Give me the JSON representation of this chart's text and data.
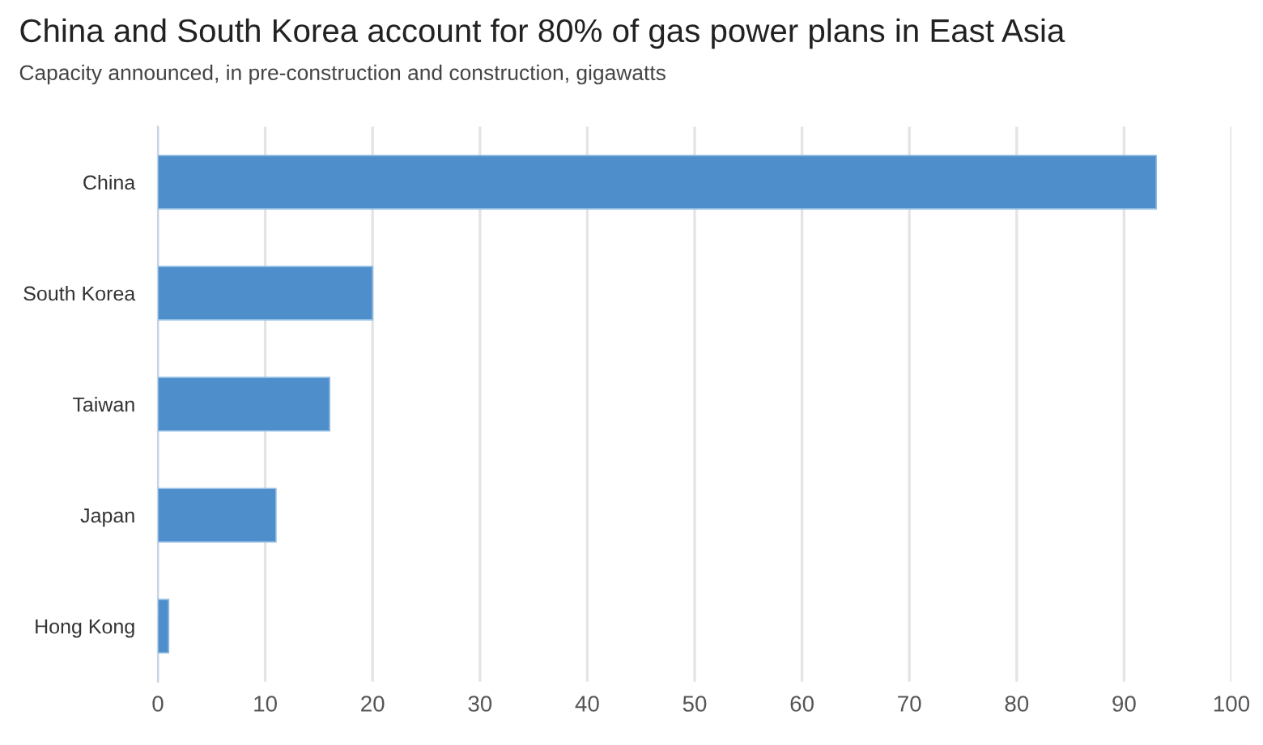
{
  "chart_data": {
    "type": "bar",
    "orientation": "horizontal",
    "title": "China and South Korea account for 80% of gas power plans in East Asia",
    "subtitle": "Capacity announced, in pre-construction and construction, gigawatts",
    "categories": [
      "China",
      "South Korea",
      "Taiwan",
      "Japan",
      "Hong Kong"
    ],
    "values": [
      93,
      20,
      16,
      11,
      1
    ],
    "color": "#4e8fcb",
    "xlim": [
      0,
      100
    ],
    "xticks": [
      0,
      10,
      20,
      30,
      40,
      50,
      60,
      70,
      80,
      90,
      100
    ],
    "grid": "x",
    "legend": false
  }
}
